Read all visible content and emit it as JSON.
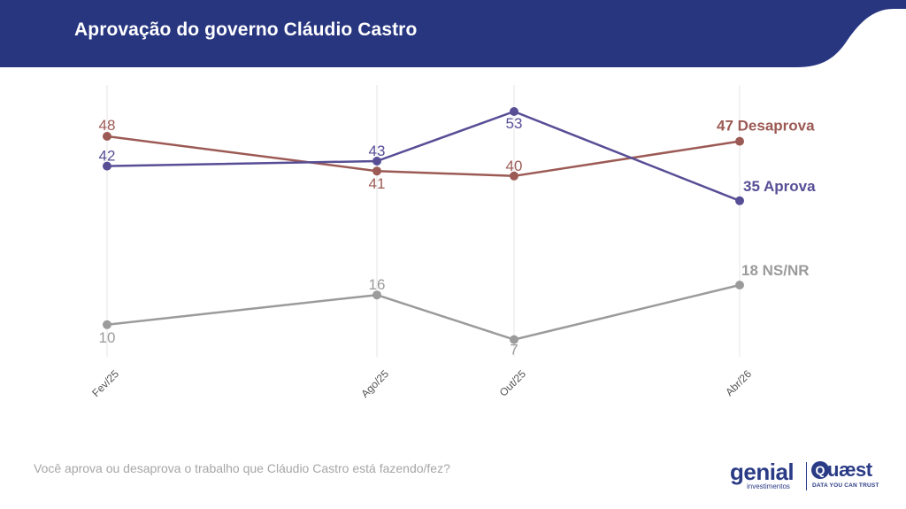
{
  "header": {
    "title": "Aprovação do governo Cláudio Castro"
  },
  "colors": {
    "header_bg": "#283680",
    "aprova": "#574e96",
    "desaprova": "#9c5a55",
    "nsnr": "#9b9b9b",
    "gridline": "#e6e6e6",
    "question_text": "#a6a6a6",
    "brand": "#2a3b86"
  },
  "chart_data": {
    "type": "line",
    "categories": [
      "Fev/25",
      "Ago/25",
      "Out/25",
      "Abr/26"
    ],
    "x_dates": [
      "2025-02",
      "2025-08",
      "2025-10",
      "2026-04"
    ],
    "series": [
      {
        "key": "desaprova",
        "name": "Desaprova",
        "values": [
          48,
          41,
          40,
          47
        ]
      },
      {
        "key": "aprova",
        "name": "Aprova",
        "values": [
          42,
          43,
          53,
          35
        ]
      },
      {
        "key": "nsnr",
        "name": "NS/NR",
        "values": [
          10,
          16,
          7,
          18
        ]
      }
    ],
    "grid": "vertical",
    "legend": "end-labels"
  },
  "footer": {
    "question": "Você aprova ou desaprova o trabalho que Cláudio Castro está fazendo/fez?"
  },
  "logos": {
    "genial_word": "genial",
    "genial_sub": "investimentos",
    "quaest_mark": "Q",
    "quaest_word": "uæst",
    "quaest_sub": "DATA YOU CAN TRUST"
  }
}
